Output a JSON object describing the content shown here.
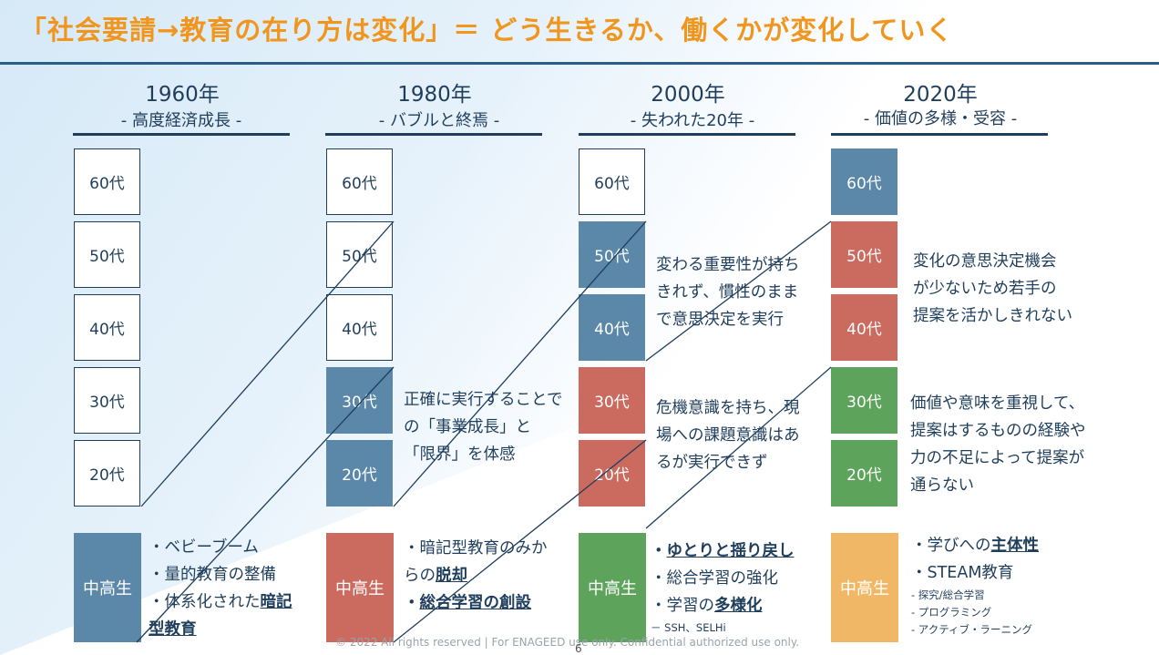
{
  "title": "「社会要請→教育の在り方は変化」＝ どう生きるか、働くかが変化していく",
  "eras": [
    {
      "year": "1960年",
      "sub": "- 高度経済成長 -"
    },
    {
      "year": "1980年",
      "sub": "- バブルと終焉 -"
    },
    {
      "year": "2000年",
      "sub": "- 失われた20年 -"
    },
    {
      "year": "2020年",
      "sub": "- 価値の多様・受容 -"
    }
  ],
  "ages": [
    "60代",
    "50代",
    "40代",
    "30代",
    "20代"
  ],
  "highschool_label": "中高生",
  "descriptions": {
    "e1980_30s": [
      "正確に実行することでの「事業成長」と",
      "「限界」を体感"
    ],
    "e2000_50s": [
      "変わる重要性が持ち",
      "きれず、慣性のまま",
      "で意思決定を実行"
    ],
    "e2000_30s": [
      "危機意識を持ち、現",
      "場への課題意識はあ",
      "るが実行できず"
    ],
    "e2020_50s": [
      "変化の意思決定機会",
      "が少ないため若手の",
      "提案を活かしきれない"
    ],
    "e2020_30s": [
      "価値や意味を重視して、",
      "提案はするものの経験や",
      "力の不足によって提案が",
      "通らない"
    ]
  },
  "bullets": {
    "e1960": {
      "b1": "・ベビーブーム",
      "b2": "・量的教育の整備",
      "b3_pre": "・体系化された",
      "b3_u1": "暗記",
      "b3_u2": "型教育"
    },
    "e1980": {
      "b1": "・暗記型教育のみか",
      "b2_pre": "らの",
      "b2_u": "脱却",
      "b3_pre": "・",
      "b3_u": "総合学習の創設"
    },
    "e2000": {
      "b1_pre": "・",
      "b1_u": "ゆとりと揺り戻し",
      "b2": "・総合学習の強化",
      "b3_pre": "・学習の",
      "b3_u": "多様化",
      "b4": "－ SSH、SELHi"
    },
    "e2020": {
      "b1_pre": "・学びへの",
      "b1_u": "主体性",
      "b2": "・STEAM教育",
      "s1": "- 探究/総合学習",
      "s2": "- プログラミング",
      "s3": "- アクティブ・ラーニング"
    }
  },
  "footer": "© 2022 All rights reserved | For ENAGEED use only. Confidential authorized use only.",
  "page_number": "6",
  "colors": {
    "title": "#f0961e",
    "navy": "#1f3e5c",
    "blue": "#5b87a8",
    "red": "#cb6b60",
    "green": "#5ea35b",
    "orange": "#f0b866"
  }
}
